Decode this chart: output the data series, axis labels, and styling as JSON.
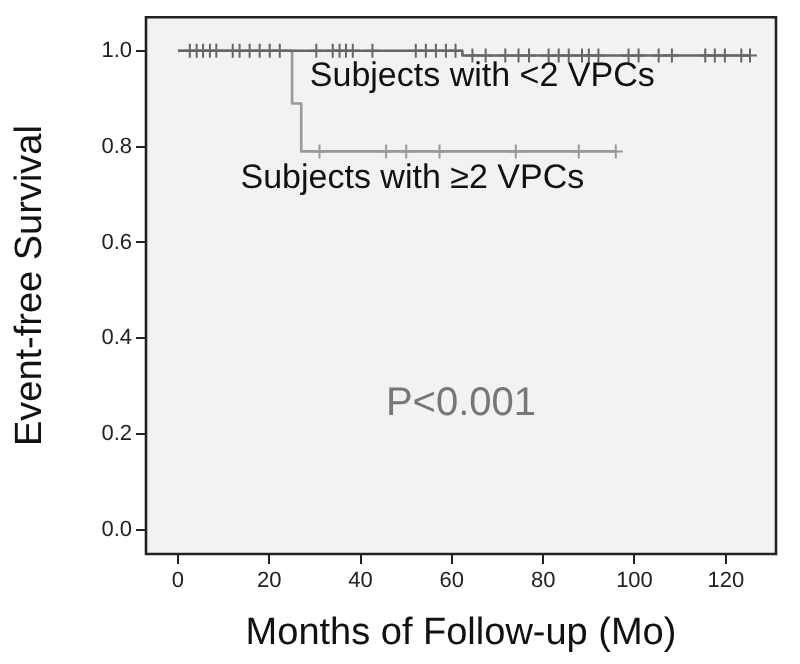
{
  "chart_data": {
    "type": "step",
    "xlabel": "Months of Follow-up (Mo)",
    "ylabel": "Event-free Survival",
    "xlim": [
      -7,
      131
    ],
    "xticks": [
      0,
      20,
      40,
      60,
      80,
      100,
      120
    ],
    "ylim": [
      -0.05,
      1.07
    ],
    "yticks": [
      {
        "value": 0,
        "label": "0.0"
      },
      0.2,
      0.4,
      0.6,
      0.8,
      {
        "value": 1,
        "label": "1.0"
      }
    ],
    "grid": false,
    "legend": false,
    "series": [
      {
        "color": "#666666",
        "x": [
          0,
          62.3,
          125.3
        ],
        "values": [
          1,
          0.99,
          0.99
        ],
        "marker": "none"
      },
      {
        "color": "#999999",
        "x": [
          0,
          25,
          27,
          95.9
        ],
        "values": [
          1,
          0.89,
          0.79,
          0.79
        ],
        "marker": "none"
      },
      {
        "type": "scatter",
        "color": "#666666",
        "marker": "cross",
        "x": [
          2.6,
          4.1,
          5.5,
          7,
          8.4,
          12,
          13.5,
          15.7,
          17.9,
          20.1,
          22.3,
          30.3,
          33.9,
          35.4,
          36.8,
          38.3,
          42.6,
          52.1,
          54.3,
          56.5,
          58.7,
          60.8,
          64.5,
          67.4,
          71.7,
          74.6,
          76.9,
          81.2,
          83.4,
          85.6,
          88.5,
          90,
          92.1,
          98.7,
          100.9,
          105.3,
          108.2,
          115.5,
          117.6,
          119.8,
          123.4,
          125.3
        ],
        "values": [
          1,
          1,
          1,
          1,
          1,
          1,
          1,
          1,
          1,
          1,
          1,
          1,
          1,
          1,
          1,
          1,
          1,
          1,
          1,
          1,
          1,
          1,
          0.99,
          0.99,
          0.99,
          0.99,
          0.99,
          0.99,
          0.99,
          0.99,
          0.99,
          0.99,
          0.99,
          0.99,
          0.99,
          0.99,
          0.99,
          0.99,
          0.99,
          0.99,
          0.99,
          0.99
        ]
      },
      {
        "type": "scatter",
        "color": "#999999",
        "marker": "cross",
        "x": [
          31,
          45.6,
          50,
          57.3,
          74,
          87.8,
          95.9
        ],
        "values": [
          0.79,
          0.79,
          0.79,
          0.79,
          0.79,
          0.79,
          0.79
        ]
      }
    ],
    "annotations": [
      "Subjects with <2 VPCs",
      "Subjects with ≥2 VPCs",
      "P<0.001"
    ]
  }
}
